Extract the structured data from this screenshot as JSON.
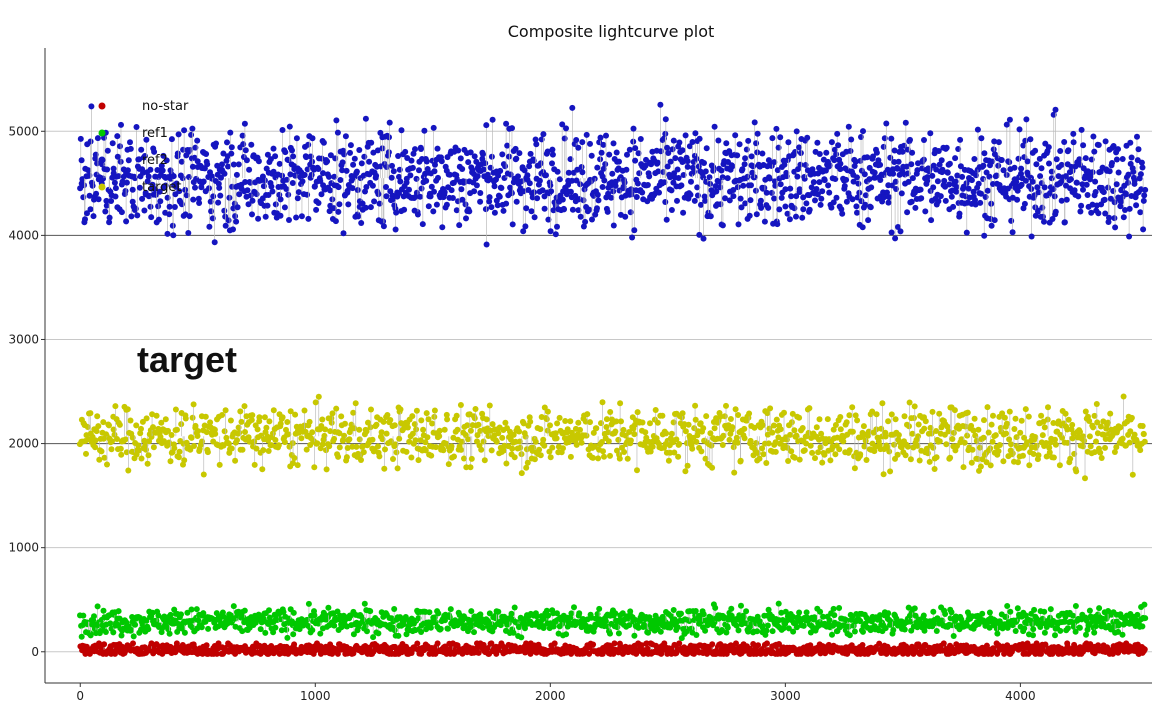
{
  "chart_data": {
    "type": "scatter",
    "title": "Composite lightcurve plot",
    "xlabel": "",
    "ylabel": "",
    "xlim": [
      -150,
      4560
    ],
    "ylim": [
      -300,
      5800
    ],
    "xticks": [
      0,
      1000,
      2000,
      3000,
      4000
    ],
    "yticks": [
      0,
      1000,
      2000,
      3000,
      4000,
      5000
    ],
    "grid": true,
    "legend_position": "top-left",
    "annotation": "target",
    "x_range": [
      0,
      4530
    ],
    "series": [
      {
        "name": "no-star",
        "color": "#c00000",
        "center": 20,
        "spread": 30,
        "min": -20,
        "max": 80
      },
      {
        "name": "ref1",
        "color": "#00c800",
        "center": 290,
        "spread": 60,
        "min": 130,
        "max": 530
      },
      {
        "name": "ref2",
        "color": "#1515c0",
        "center": 4550,
        "spread": 230,
        "min": 3660,
        "max": 5500
      },
      {
        "name": "target",
        "color": "#c8c800",
        "center": 2070,
        "spread": 140,
        "min": 1480,
        "max": 2630
      }
    ]
  }
}
